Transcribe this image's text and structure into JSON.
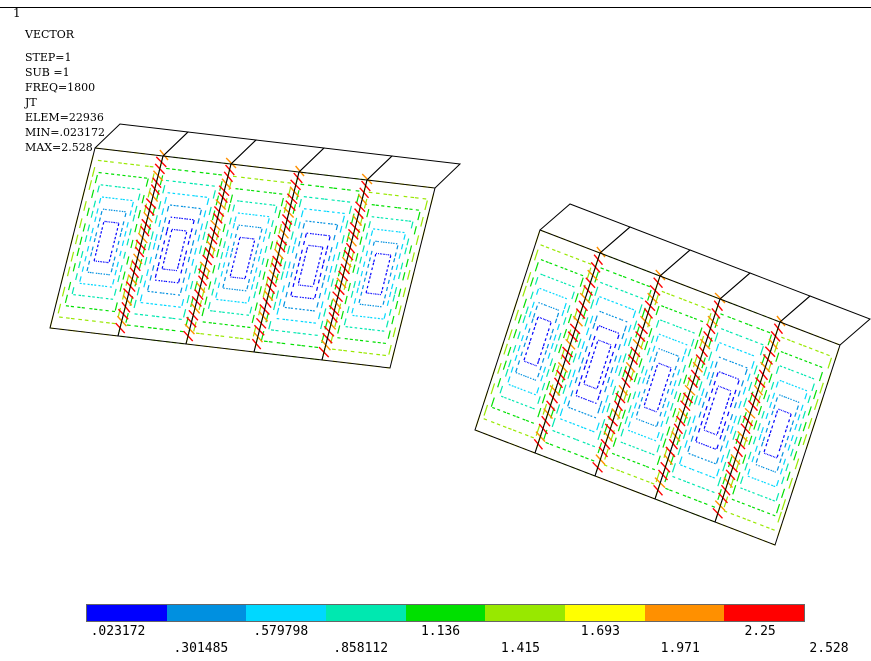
{
  "window_number": "1",
  "info": {
    "title": "VECTOR",
    "step": "STEP=1",
    "sub": "SUB =1",
    "freq": "FREQ=1800",
    "quantity": "JT",
    "elem": "ELEM=22936",
    "min": "MIN=.023172",
    "max": "MAX=2.528"
  },
  "legend": {
    "band_colors": [
      "#0000ff",
      "#0090e0",
      "#00d8ff",
      "#00e8b0",
      "#00e000",
      "#98e800",
      "#ffff00",
      "#ff9000",
      "#ff0000"
    ],
    "top_labels": [
      ".023172",
      ".579798",
      "1.136",
      "1.693",
      "2.25"
    ],
    "bottom_labels": [
      ".301485",
      ".858112",
      "1.415",
      "1.971",
      "2.528"
    ]
  }
}
